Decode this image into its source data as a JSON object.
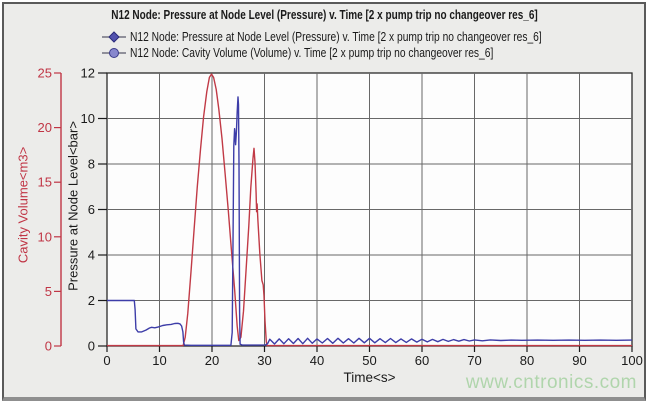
{
  "watermark": "www.cntronics.com",
  "colors": {
    "frame_background": "#ececea",
    "plot_background": "#fdfdfd",
    "plot_border": "#2a2a2a",
    "gridline": "#686868",
    "text": "#1a1a1a",
    "watermark_green": "#a6d2a2",
    "legend_line": "#5a5a6a"
  },
  "chart_data": {
    "type": "line",
    "title": "N12 Node: Pressure at Node Level (Pressure) v. Time [2 x pump trip no changeover res_6]",
    "legend_position": "top-left",
    "grid": true,
    "x_axis": {
      "label": "Time<s>",
      "min": 0,
      "max": 100,
      "ticks": [
        0,
        10,
        20,
        30,
        40,
        50,
        60,
        70,
        80,
        90,
        100
      ]
    },
    "y_axis_pressure": {
      "label": "Pressure at Node Level<bar>",
      "min": 0,
      "max": 12,
      "ticks": [
        0,
        2,
        4,
        6,
        8,
        10,
        12
      ],
      "color": "#1a1a1a"
    },
    "y_axis_volume": {
      "label": "Cavity Volume<m3>",
      "min": 0,
      "max": 25,
      "ticks": [
        0,
        5,
        10,
        15,
        20,
        25
      ],
      "color": "#c03545"
    },
    "series": [
      {
        "name": "N12 Node: Pressure at Node Level (Pressure) v. Time [2 x pump trip no changeover res_6]",
        "axis": "pressure",
        "color": "#3d3da8",
        "marker": "diamond",
        "marker_fill": "#5252ae",
        "marker_stroke": "#2a2a7a",
        "points": [
          [
            0,
            2.0
          ],
          [
            5.2,
            2.0
          ],
          [
            5.35,
            1.6
          ],
          [
            5.5,
            0.75
          ],
          [
            5.9,
            0.62
          ],
          [
            6.6,
            0.62
          ],
          [
            7.4,
            0.7
          ],
          [
            8.1,
            0.79
          ],
          [
            8.5,
            0.82
          ],
          [
            9.1,
            0.8
          ],
          [
            9.8,
            0.84
          ],
          [
            10.6,
            0.9
          ],
          [
            11.4,
            0.93
          ],
          [
            12.2,
            0.95
          ],
          [
            12.9,
            0.99
          ],
          [
            13.5,
            1.0
          ],
          [
            13.9,
            0.97
          ],
          [
            14.2,
            0.88
          ],
          [
            14.45,
            0.62
          ],
          [
            14.6,
            0.18
          ],
          [
            14.75,
            0.04
          ],
          [
            16,
            0.03
          ],
          [
            18,
            0.03
          ],
          [
            20,
            0.03
          ],
          [
            22,
            0.03
          ],
          [
            23.6,
            0.03
          ],
          [
            23.85,
            0.6
          ],
          [
            24.0,
            4.5
          ],
          [
            24.15,
            8.8
          ],
          [
            24.3,
            9.55
          ],
          [
            24.4,
            9.3
          ],
          [
            24.5,
            8.85
          ],
          [
            24.65,
            9.4
          ],
          [
            24.8,
            10.3
          ],
          [
            24.95,
            10.95
          ],
          [
            25.05,
            10.6
          ],
          [
            25.15,
            8.0
          ],
          [
            25.25,
            1.5
          ],
          [
            25.35,
            0.08
          ],
          [
            25.8,
            0.04
          ],
          [
            27,
            0.04
          ],
          [
            28.5,
            0.04
          ],
          [
            30.2,
            0.05
          ],
          [
            30.6,
            0.1
          ],
          [
            31.0,
            0.3
          ],
          [
            31.9,
            0.09
          ],
          [
            32.8,
            0.31
          ],
          [
            33.7,
            0.1
          ],
          [
            34.6,
            0.32
          ],
          [
            35.5,
            0.11
          ],
          [
            36.4,
            0.33
          ],
          [
            37.3,
            0.1
          ],
          [
            38.2,
            0.34
          ],
          [
            39.1,
            0.12
          ],
          [
            40.0,
            0.31
          ],
          [
            41.0,
            0.13
          ],
          [
            42.0,
            0.33
          ],
          [
            43.0,
            0.12
          ],
          [
            44.0,
            0.34
          ],
          [
            45.0,
            0.13
          ],
          [
            46.0,
            0.32
          ],
          [
            47.0,
            0.13
          ],
          [
            48.0,
            0.34
          ],
          [
            49.0,
            0.14
          ],
          [
            50.0,
            0.34
          ],
          [
            51.0,
            0.14
          ],
          [
            52.0,
            0.32
          ],
          [
            53.0,
            0.15
          ],
          [
            54.0,
            0.33
          ],
          [
            55.0,
            0.15
          ],
          [
            56.0,
            0.31
          ],
          [
            57.0,
            0.16
          ],
          [
            58.0,
            0.31
          ],
          [
            59.0,
            0.17
          ],
          [
            60.0,
            0.3
          ],
          [
            61.0,
            0.18
          ],
          [
            62.0,
            0.29
          ],
          [
            63.0,
            0.19
          ],
          [
            64.0,
            0.29
          ],
          [
            65.0,
            0.2
          ],
          [
            66.0,
            0.28
          ],
          [
            67.0,
            0.21
          ],
          [
            68.0,
            0.28
          ],
          [
            69.0,
            0.22
          ],
          [
            70.0,
            0.27
          ],
          [
            71.5,
            0.23
          ],
          [
            73.0,
            0.27
          ],
          [
            75.0,
            0.24
          ],
          [
            77.0,
            0.26
          ],
          [
            79.0,
            0.25
          ],
          [
            82.0,
            0.26
          ],
          [
            85.0,
            0.25
          ],
          [
            88.0,
            0.26
          ],
          [
            91.0,
            0.25
          ],
          [
            94.0,
            0.26
          ],
          [
            97.0,
            0.25
          ],
          [
            100.0,
            0.26
          ]
        ]
      },
      {
        "name": "N12 Node: Cavity Volume (Volume) v. Time [2 x pump trip no changeover res_6]",
        "axis": "volume",
        "color": "#c13a46",
        "marker": "circle",
        "marker_fill": "#8787cd",
        "marker_stroke": "#3a3a8a",
        "points": [
          [
            0,
            0.04
          ],
          [
            14.5,
            0.04
          ],
          [
            14.9,
            0.8
          ],
          [
            15.4,
            3.0
          ],
          [
            16.0,
            6.8
          ],
          [
            16.6,
            10.8
          ],
          [
            17.2,
            14.6
          ],
          [
            17.8,
            18.0
          ],
          [
            18.4,
            21.0
          ],
          [
            19.0,
            23.3
          ],
          [
            19.5,
            24.6
          ],
          [
            19.9,
            24.9
          ],
          [
            20.3,
            24.6
          ],
          [
            20.8,
            23.5
          ],
          [
            21.3,
            21.7
          ],
          [
            21.9,
            19.0
          ],
          [
            22.5,
            15.8
          ],
          [
            23.1,
            12.4
          ],
          [
            23.7,
            8.8
          ],
          [
            24.3,
            5.2
          ],
          [
            24.8,
            1.8
          ],
          [
            25.1,
            0.5
          ],
          [
            25.5,
            0.8
          ],
          [
            26.0,
            3.2
          ],
          [
            26.5,
            7.0
          ],
          [
            27.0,
            11.0
          ],
          [
            27.4,
            14.5
          ],
          [
            27.8,
            17.2
          ],
          [
            28.0,
            18.1
          ],
          [
            28.2,
            16.8
          ],
          [
            28.4,
            14.0
          ],
          [
            28.5,
            12.3
          ],
          [
            28.6,
            13.0
          ],
          [
            28.75,
            11.5
          ],
          [
            29.1,
            8.5
          ],
          [
            29.5,
            6.0
          ],
          [
            29.75,
            5.6
          ],
          [
            29.9,
            4.6
          ],
          [
            30.1,
            2.3
          ],
          [
            30.35,
            0.4
          ],
          [
            30.5,
            0.04
          ],
          [
            32,
            0.04
          ],
          [
            100,
            0.04
          ]
        ]
      }
    ]
  }
}
